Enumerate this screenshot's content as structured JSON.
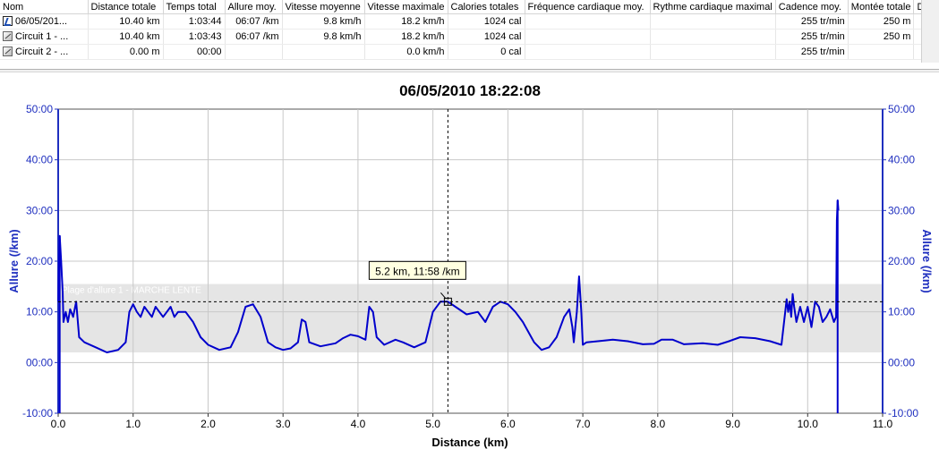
{
  "table": {
    "columns": [
      "Nom",
      "Distance totale",
      "Temps total",
      "Allure moy.",
      "Vitesse moyenne",
      "Vitesse maximale",
      "Calories totales",
      "Fréquence cardiaque moy.",
      "Rythme cardiaque maximal",
      "Cadence moy.",
      "Montée totale",
      "D"
    ],
    "rows": [
      {
        "icon": "running-activity-icon",
        "cells": [
          "06/05/201...",
          "10.40 km",
          "1:03:44",
          "06:07 /km",
          "9.8 km/h",
          "18.2 km/h",
          "1024 cal",
          "",
          "",
          "255 tr/min",
          "250 m"
        ]
      },
      {
        "icon": "lap-icon",
        "cells": [
          "Circuit 1 - ...",
          "10.40 km",
          "1:03:43",
          "06:07 /km",
          "9.8 km/h",
          "18.2 km/h",
          "1024 cal",
          "",
          "",
          "255 tr/min",
          "250 m"
        ]
      },
      {
        "icon": "lap-icon",
        "cells": [
          "Circuit 2 - ...",
          "0.00 m",
          "00:00",
          "",
          "",
          "0.0 km/h",
          "0 cal",
          "",
          "",
          "255 tr/min",
          ""
        ]
      }
    ]
  },
  "chart_data": {
    "type": "line",
    "title": "06/05/2010 18:22:08",
    "xlabel": "Distance (km)",
    "ylabel": "Allure (/km)",
    "ylabel_right": "Allure (/km)",
    "xlim": [
      0,
      11
    ],
    "ylim": [
      -10,
      50
    ],
    "x_ticks": [
      "0.0",
      "1.0",
      "2.0",
      "3.0",
      "4.0",
      "5.0",
      "6.0",
      "7.0",
      "8.0",
      "9.0",
      "10.0",
      "11.0"
    ],
    "y_ticks": [
      "-10:00",
      "00:00",
      "10:00",
      "20:00",
      "30:00",
      "40:00",
      "50:00"
    ],
    "grid": true,
    "band": {
      "label": "Plage d'allure 1 - MARCHE LENTE",
      "y_range": [
        2,
        15.5
      ]
    },
    "cursor": {
      "x": 5.2,
      "y": 12.0,
      "label": "5.2 km, 11:58 /km"
    },
    "series": [
      {
        "color": "#0000cc",
        "points": [
          [
            0.0,
            12
          ],
          [
            0.02,
            25
          ],
          [
            0.04,
            20
          ],
          [
            0.06,
            14
          ],
          [
            0.07,
            8
          ],
          [
            0.1,
            10
          ],
          [
            0.13,
            8
          ],
          [
            0.16,
            10.5
          ],
          [
            0.2,
            9
          ],
          [
            0.24,
            12
          ],
          [
            0.28,
            5
          ],
          [
            0.35,
            4
          ],
          [
            0.5,
            3
          ],
          [
            0.65,
            2
          ],
          [
            0.8,
            2.5
          ],
          [
            0.9,
            4
          ],
          [
            0.95,
            10
          ],
          [
            1.0,
            11.5
          ],
          [
            1.05,
            10
          ],
          [
            1.1,
            9
          ],
          [
            1.15,
            11
          ],
          [
            1.2,
            10
          ],
          [
            1.25,
            9
          ],
          [
            1.3,
            11
          ],
          [
            1.35,
            10
          ],
          [
            1.4,
            9
          ],
          [
            1.45,
            10
          ],
          [
            1.5,
            11
          ],
          [
            1.55,
            9
          ],
          [
            1.6,
            10
          ],
          [
            1.7,
            10
          ],
          [
            1.8,
            8
          ],
          [
            1.9,
            5
          ],
          [
            2.0,
            3.5
          ],
          [
            2.15,
            2.5
          ],
          [
            2.3,
            3
          ],
          [
            2.4,
            6
          ],
          [
            2.5,
            11
          ],
          [
            2.6,
            11.5
          ],
          [
            2.7,
            9
          ],
          [
            2.8,
            4
          ],
          [
            2.9,
            3
          ],
          [
            3.0,
            2.5
          ],
          [
            3.1,
            2.8
          ],
          [
            3.2,
            4
          ],
          [
            3.25,
            8.5
          ],
          [
            3.3,
            8
          ],
          [
            3.35,
            4
          ],
          [
            3.5,
            3.2
          ],
          [
            3.7,
            3.8
          ],
          [
            3.8,
            4.8
          ],
          [
            3.9,
            5.5
          ],
          [
            4.0,
            5.2
          ],
          [
            4.1,
            4.5
          ],
          [
            4.15,
            11
          ],
          [
            4.2,
            10
          ],
          [
            4.25,
            5
          ],
          [
            4.35,
            3.5
          ],
          [
            4.5,
            4.5
          ],
          [
            4.6,
            4
          ],
          [
            4.75,
            3
          ],
          [
            4.9,
            4
          ],
          [
            5.0,
            10
          ],
          [
            5.1,
            12
          ],
          [
            5.2,
            12
          ],
          [
            5.3,
            11
          ],
          [
            5.45,
            9.5
          ],
          [
            5.6,
            10
          ],
          [
            5.7,
            8
          ],
          [
            5.8,
            11
          ],
          [
            5.9,
            12
          ],
          [
            6.0,
            11.5
          ],
          [
            6.1,
            10
          ],
          [
            6.2,
            8
          ],
          [
            6.35,
            4
          ],
          [
            6.45,
            2.5
          ],
          [
            6.55,
            3
          ],
          [
            6.65,
            5
          ],
          [
            6.75,
            9
          ],
          [
            6.82,
            10.5
          ],
          [
            6.86,
            7
          ],
          [
            6.88,
            4
          ],
          [
            6.92,
            10
          ],
          [
            6.95,
            17
          ],
          [
            6.98,
            10
          ],
          [
            7.0,
            3.5
          ],
          [
            7.05,
            4
          ],
          [
            7.2,
            4.2
          ],
          [
            7.4,
            4.5
          ],
          [
            7.6,
            4.2
          ],
          [
            7.8,
            3.6
          ],
          [
            7.95,
            3.7
          ],
          [
            8.05,
            4.5
          ],
          [
            8.2,
            4.5
          ],
          [
            8.35,
            3.6
          ],
          [
            8.6,
            3.8
          ],
          [
            8.8,
            3.5
          ],
          [
            8.95,
            4.2
          ],
          [
            9.1,
            5
          ],
          [
            9.3,
            4.8
          ],
          [
            9.5,
            4.2
          ],
          [
            9.65,
            3.5
          ],
          [
            9.7,
            10
          ],
          [
            9.72,
            12.5
          ],
          [
            9.74,
            10
          ],
          [
            9.76,
            12
          ],
          [
            9.78,
            9
          ],
          [
            9.8,
            13.5
          ],
          [
            9.82,
            11
          ],
          [
            9.85,
            8
          ],
          [
            9.9,
            11
          ],
          [
            9.95,
            8
          ],
          [
            10.0,
            11
          ],
          [
            10.05,
            7
          ],
          [
            10.1,
            12
          ],
          [
            10.15,
            11
          ],
          [
            10.2,
            8
          ],
          [
            10.25,
            9
          ],
          [
            10.3,
            10.5
          ],
          [
            10.35,
            8
          ],
          [
            10.38,
            9
          ],
          [
            10.39,
            28
          ],
          [
            10.4,
            32
          ],
          [
            10.41,
            30
          ]
        ]
      }
    ]
  }
}
